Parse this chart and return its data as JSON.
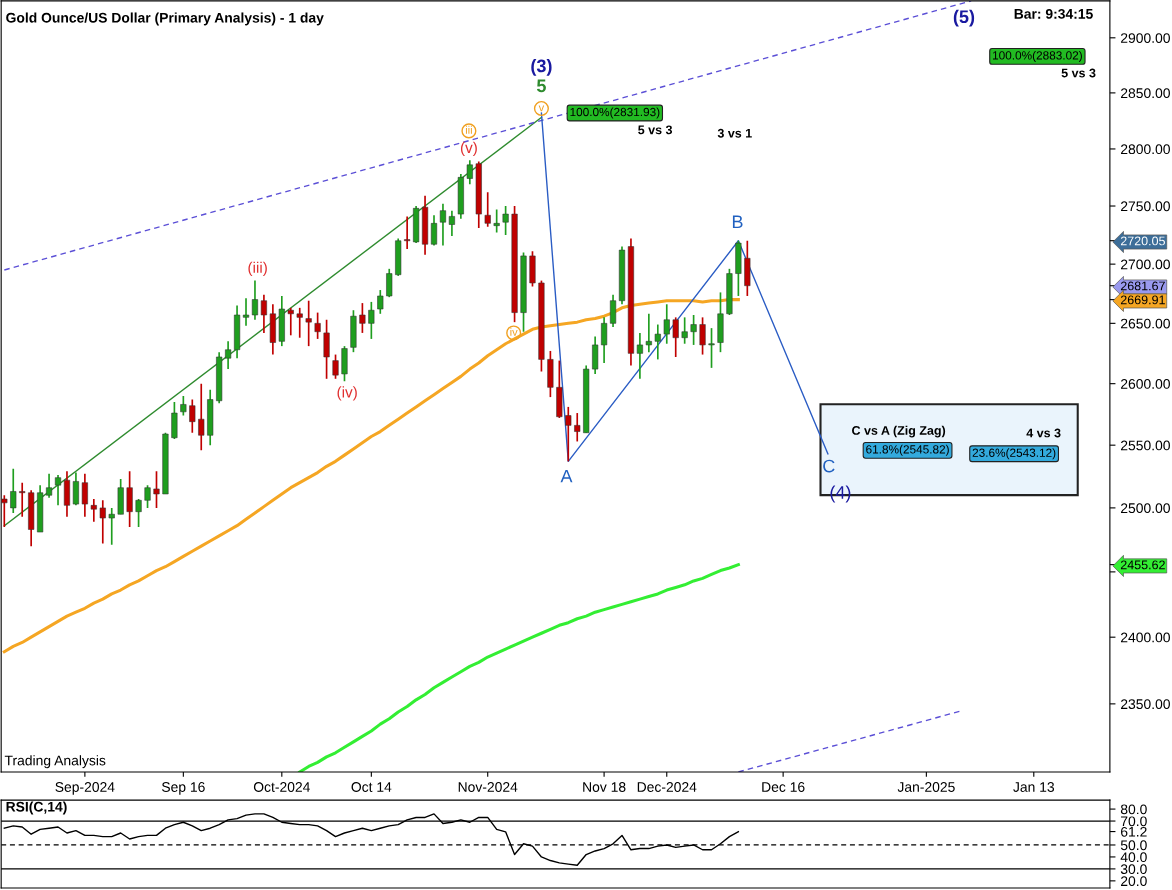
{
  "chart_data": [
    {
      "type": "candlestick",
      "title": "Gold Ounce/US Dollar (Primary Analysis) - 1 day",
      "log": true,
      "categories": [
        null,
        null,
        null,
        null,
        null,
        null,
        null,
        null,
        null,
        "Sep-2024",
        null,
        null,
        null,
        null,
        null,
        null,
        null,
        null,
        null,
        null,
        "Sep 16",
        null,
        null,
        null,
        null,
        null,
        null,
        null,
        null,
        null,
        null,
        "Oct-2024",
        null,
        null,
        null,
        null,
        null,
        null,
        null,
        null,
        null,
        "Oct 14",
        null,
        null,
        null,
        null,
        null,
        null,
        null,
        null,
        null,
        null,
        null,
        null,
        "Nov-2024",
        null,
        null,
        null,
        null,
        null,
        null,
        null,
        null,
        null,
        null,
        null,
        null,
        "Nov 18",
        null,
        null,
        null,
        null,
        null,
        null,
        "Dec-2024",
        null,
        null,
        null,
        null,
        null,
        null,
        null,
        null,
        null,
        null,
        null,
        null,
        "Dec 16",
        null,
        null,
        null,
        null,
        null,
        null,
        null,
        null,
        null,
        null,
        null,
        null,
        null,
        null,
        null,
        "Jan-2025",
        null,
        null,
        null,
        null,
        null,
        null,
        null,
        null,
        null,
        null,
        null,
        "Jan 13",
        null,
        null,
        null,
        null,
        null,
        null,
        null,
        null
      ],
      "ohlc": [
        [
          2507,
          2510,
          2485,
          2504
        ],
        [
          2500,
          2531,
          2496,
          2513
        ],
        [
          2513,
          2520,
          2493,
          2512
        ],
        [
          2512,
          2514,
          2470,
          2483
        ],
        [
          2481,
          2518,
          2481,
          2512
        ],
        [
          2510,
          2527,
          2508,
          2516
        ],
        [
          2518,
          2526,
          2502,
          2524
        ],
        [
          2522,
          2529,
          2493,
          2502
        ],
        [
          2503,
          2528,
          2502,
          2521
        ],
        [
          2520,
          2527,
          2493,
          2503
        ],
        [
          2502,
          2507,
          2489,
          2499
        ],
        [
          2500,
          2506,
          2472,
          2492
        ],
        [
          2492,
          2500,
          2471,
          2495
        ],
        [
          2495,
          2523,
          2495,
          2516
        ],
        [
          2516,
          2529,
          2485,
          2497
        ],
        [
          2497,
          2507,
          2485,
          2506
        ],
        [
          2506,
          2518,
          2500,
          2516
        ],
        [
          2515,
          2529,
          2500,
          2511
        ],
        [
          2511,
          2560,
          2511,
          2559
        ],
        [
          2556,
          2585,
          2555,
          2576
        ],
        [
          2577,
          2590,
          2574,
          2583
        ],
        [
          2582,
          2587,
          2560,
          2569
        ],
        [
          2571,
          2600,
          2546,
          2558
        ],
        [
          2558,
          2595,
          2550,
          2587
        ],
        [
          2586,
          2626,
          2584,
          2622
        ],
        [
          2621,
          2635,
          2612,
          2628
        ],
        [
          2628,
          2665,
          2621,
          2657
        ],
        [
          2655,
          2671,
          2648,
          2657
        ],
        [
          2657,
          2686,
          2653,
          2670
        ],
        [
          2669,
          2674,
          2642,
          2657
        ],
        [
          2658,
          2666,
          2624,
          2634
        ],
        [
          2635,
          2673,
          2631,
          2662
        ],
        [
          2661,
          2663,
          2640,
          2658
        ],
        [
          2658,
          2663,
          2638,
          2655
        ],
        [
          2654,
          2669,
          2631,
          2651
        ],
        [
          2650,
          2659,
          2637,
          2643
        ],
        [
          2642,
          2653,
          2604,
          2622
        ],
        [
          2619,
          2624,
          2604,
          2607
        ],
        [
          2608,
          2631,
          2602,
          2629
        ],
        [
          2630,
          2661,
          2626,
          2656
        ],
        [
          2657,
          2667,
          2642,
          2650
        ],
        [
          2650,
          2668,
          2637,
          2661
        ],
        [
          2662,
          2678,
          2658,
          2673
        ],
        [
          2673,
          2696,
          2672,
          2692
        ],
        [
          2691,
          2722,
          2690,
          2720
        ],
        [
          2721,
          2741,
          2713,
          2720
        ],
        [
          2719,
          2750,
          2718,
          2748
        ],
        [
          2749,
          2759,
          2708,
          2717
        ],
        [
          2717,
          2742,
          2716,
          2735
        ],
        [
          2736,
          2752,
          2716,
          2746
        ],
        [
          2734,
          2746,
          2724,
          2741
        ],
        [
          2743,
          2778,
          2739,
          2775
        ],
        [
          2774,
          2790,
          2769,
          2786
        ],
        [
          2787,
          2789,
          2731,
          2743
        ],
        [
          2742,
          2762,
          2732,
          2735
        ],
        [
          2733,
          2747,
          2727,
          2735
        ],
        [
          2736,
          2750,
          2725,
          2743
        ],
        [
          2743,
          2750,
          2651,
          2659
        ],
        [
          2659,
          2710,
          2643,
          2707
        ],
        [
          2707,
          2711,
          2681,
          2684
        ],
        [
          2684,
          2686,
          2610,
          2620
        ],
        [
          2620,
          2627,
          2589,
          2597
        ],
        [
          2597,
          2619,
          2572,
          2573
        ],
        [
          2574,
          2581,
          2537,
          2566
        ],
        [
          2566,
          2576,
          2553,
          2561
        ],
        [
          2560,
          2615,
          2560,
          2612
        ],
        [
          2612,
          2639,
          2608,
          2632
        ],
        [
          2632,
          2655,
          2617,
          2650
        ],
        [
          2650,
          2674,
          2647,
          2669
        ],
        [
          2669,
          2715,
          2666,
          2712
        ],
        [
          2715,
          2722,
          2615,
          2625
        ],
        [
          2625,
          2642,
          2604,
          2632
        ],
        [
          2632,
          2658,
          2626,
          2635
        ],
        [
          2635,
          2649,
          2620,
          2641
        ],
        [
          2641,
          2666,
          2633,
          2653
        ],
        [
          2653,
          2655,
          2622,
          2638
        ],
        [
          2638,
          2655,
          2633,
          2643
        ],
        [
          2643,
          2657,
          2632,
          2649
        ],
        [
          2649,
          2655,
          2624,
          2632
        ],
        [
          2632,
          2646,
          2613,
          2633
        ],
        [
          2634,
          2676,
          2626,
          2658
        ],
        [
          2658,
          2696,
          2657,
          2692
        ],
        [
          2692,
          2720.05,
          2673,
          2718
        ],
        [
          2705,
          2720,
          2673,
          2681.67
        ],
        null,
        null,
        null,
        null,
        null,
        null,
        null,
        null,
        null,
        null,
        null,
        null,
        null,
        null,
        null,
        null,
        null,
        null,
        null,
        null,
        null,
        null,
        null,
        null,
        null,
        null,
        null,
        null,
        null,
        null,
        null,
        null,
        null,
        null,
        null,
        null,
        null,
        null,
        null,
        null
      ],
      "series": [
        {
          "type": "line",
          "color": "#f5a623",
          "values": [
            2389,
            2393,
            2396,
            2400,
            2404,
            2408,
            2412,
            2416,
            2419,
            2422,
            2426,
            2429,
            2433,
            2436,
            2440,
            2443,
            2447,
            2451,
            2454,
            2458,
            2462,
            2466,
            2470,
            2474,
            2478,
            2482,
            2486,
            2491,
            2496,
            2501,
            2506,
            2511,
            2516,
            2520,
            2524,
            2528,
            2533,
            2537,
            2542,
            2547,
            2552,
            2557,
            2561,
            2566,
            2571,
            2576,
            2581,
            2586,
            2591,
            2596,
            2601,
            2606,
            2612,
            2617,
            2623,
            2628,
            2633,
            2637,
            2641,
            2645,
            2647,
            2648,
            2649,
            2650,
            2651,
            2653,
            2654,
            2656,
            2659,
            2663,
            2665,
            2666,
            2667,
            2668,
            2669,
            2669,
            2669,
            2669,
            2668,
            2669,
            2669,
            2670,
            2669.91,
            null,
            null,
            null,
            null,
            null,
            null,
            null,
            null,
            null,
            null,
            null,
            null,
            null,
            null,
            null,
            null,
            null,
            null,
            null,
            null,
            null,
            null,
            null,
            null,
            null,
            null,
            null,
            null,
            null,
            null,
            null,
            null,
            null,
            null,
            null,
            null,
            null,
            null,
            null,
            null,
            null
          ]
        },
        {
          "type": "line",
          "color": "#33ee33",
          "values": [
            null,
            null,
            null,
            null,
            null,
            null,
            null,
            null,
            null,
            null,
            null,
            null,
            null,
            null,
            null,
            null,
            null,
            null,
            null,
            null,
            null,
            null,
            null,
            null,
            null,
            null,
            null,
            null,
            null,
            null,
            null,
            null,
            null,
            2300,
            2304,
            2307,
            2311,
            2314,
            2318,
            2322,
            2326,
            2330,
            2335,
            2339,
            2344,
            2348,
            2353,
            2357,
            2362,
            2366,
            2370,
            2374,
            2378,
            2381,
            2385,
            2388,
            2391,
            2394,
            2397,
            2400,
            2403,
            2406,
            2409,
            2411,
            2414,
            2416,
            2419,
            2421,
            2423,
            2425,
            2427,
            2429,
            2431,
            2433,
            2436,
            2438,
            2440,
            2443,
            2445,
            2448,
            2451,
            2453,
            2455.62,
            null,
            null,
            null,
            null,
            null,
            null,
            null,
            null,
            null,
            null,
            null,
            null,
            null,
            null,
            null,
            null,
            null,
            null,
            null,
            null,
            null,
            null,
            null,
            null,
            null,
            null,
            null,
            null,
            null,
            null,
            null,
            null,
            null,
            null,
            null,
            null,
            null,
            null,
            null,
            null,
            null
          ]
        },
        {
          "type": "line",
          "color": "#2e8b2e",
          "values": [
            2486,
            null,
            null,
            null,
            null,
            null,
            null,
            null,
            null,
            null,
            null,
            null,
            null,
            null,
            null,
            null,
            null,
            null,
            null,
            null,
            null,
            null,
            null,
            null,
            null,
            null,
            null,
            null,
            null,
            null,
            null,
            null,
            null,
            null,
            null,
            null,
            null,
            null,
            null,
            null,
            null,
            null,
            null,
            null,
            null,
            null,
            null,
            null,
            null,
            null,
            null,
            null,
            null,
            null,
            null,
            null,
            null,
            null,
            null,
            null,
            2828,
            null,
            null,
            null,
            null,
            null,
            null,
            null,
            null,
            null,
            null,
            null,
            null,
            null,
            null,
            null,
            null,
            null,
            null,
            null,
            null,
            null,
            null,
            null,
            null,
            null,
            null,
            null,
            null,
            null,
            null,
            null,
            null,
            null,
            null,
            null,
            null,
            null,
            null,
            null,
            null,
            null,
            null,
            null,
            null,
            null,
            null,
            null,
            null,
            null,
            null,
            null,
            null,
            null,
            null,
            null,
            null,
            null,
            null,
            null,
            null,
            null,
            null,
            null
          ]
        },
        {
          "type": "line",
          "color": "#5b4fd6",
          "line_style": "dashed",
          "values": [
            2695,
            null,
            null,
            null,
            null,
            null,
            null,
            null,
            null,
            null,
            null,
            null,
            null,
            null,
            null,
            null,
            null,
            null,
            null,
            null,
            null,
            null,
            null,
            null,
            null,
            null,
            null,
            null,
            null,
            null,
            null,
            null,
            null,
            null,
            null,
            null,
            null,
            null,
            null,
            null,
            null,
            null,
            null,
            null,
            null,
            null,
            null,
            null,
            null,
            null,
            null,
            null,
            null,
            null,
            null,
            null,
            null,
            null,
            null,
            null,
            null,
            null,
            null,
            null,
            null,
            null,
            null,
            null,
            null,
            null,
            null,
            null,
            null,
            null,
            null,
            null,
            null,
            null,
            null,
            null,
            null,
            null,
            null,
            null,
            null,
            null,
            null,
            null,
            null,
            null,
            null,
            null,
            null,
            null,
            null,
            null,
            null,
            null,
            null,
            null,
            null,
            null,
            null,
            null,
            null,
            null,
            null,
            null,
            2934,
            null,
            null,
            null,
            null,
            null,
            null,
            null,
            null,
            null,
            null,
            null,
            null,
            null,
            null,
            null
          ]
        },
        {
          "type": "line",
          "color": "#5b4fd6",
          "line_style": "dashed",
          "values": [
            null,
            null,
            null,
            null,
            null,
            null,
            null,
            null,
            null,
            null,
            null,
            null,
            null,
            null,
            null,
            null,
            null,
            null,
            null,
            null,
            null,
            null,
            null,
            null,
            null,
            null,
            null,
            null,
            null,
            null,
            null,
            null,
            null,
            null,
            null,
            null,
            null,
            null,
            null,
            null,
            null,
            null,
            null,
            null,
            null,
            null,
            null,
            null,
            null,
            null,
            null,
            null,
            null,
            null,
            null,
            null,
            null,
            null,
            null,
            null,
            null,
            null,
            null,
            null,
            null,
            null,
            null,
            null,
            null,
            null,
            null,
            null,
            null,
            null,
            null,
            null,
            null,
            null,
            null,
            null,
            null,
            null,
            2300,
            null,
            null,
            null,
            null,
            null,
            null,
            null,
            null,
            null,
            null,
            null,
            null,
            null,
            null,
            null,
            null,
            null,
            null,
            null,
            null,
            null,
            null,
            null,
            null,
            2345,
            null,
            null,
            null,
            null,
            null,
            null,
            null,
            null,
            null,
            null,
            null,
            null,
            null,
            null,
            null,
            null
          ]
        },
        {
          "type": "line",
          "color": "#2a5cc4",
          "values": [
            null,
            null,
            null,
            null,
            null,
            null,
            null,
            null,
            null,
            null,
            null,
            null,
            null,
            null,
            null,
            null,
            null,
            null,
            null,
            null,
            null,
            null,
            null,
            null,
            null,
            null,
            null,
            null,
            null,
            null,
            null,
            null,
            null,
            null,
            null,
            null,
            null,
            null,
            null,
            null,
            null,
            null,
            null,
            null,
            null,
            null,
            null,
            null,
            null,
            null,
            null,
            null,
            null,
            null,
            null,
            null,
            null,
            null,
            null,
            null,
            2831.93,
            null,
            null,
            2537,
            null,
            null,
            null,
            null,
            null,
            null,
            null,
            null,
            null,
            null,
            null,
            null,
            null,
            null,
            null,
            null,
            null,
            null,
            2720.05,
            null,
            null,
            null,
            null,
            null,
            null,
            null,
            null,
            null,
            2543,
            null,
            null,
            null,
            null,
            null,
            null,
            null,
            null,
            null,
            null,
            null,
            null,
            null,
            null,
            null,
            null,
            null,
            null,
            null,
            null,
            null,
            null,
            null,
            null,
            null,
            null,
            null,
            null,
            null,
            null,
            null
          ]
        }
      ],
      "ylim": [
        2300,
        2934
      ],
      "yticks": [
        {
          "value": 2350,
          "label": "2350.00"
        },
        {
          "value": 2400,
          "label": "2400.00"
        },
        {
          "value": 2450,
          "label": null
        },
        {
          "value": 2500,
          "label": "2500.00"
        },
        {
          "value": 2550,
          "label": "2550.00"
        },
        {
          "value": 2600,
          "label": "2600.00"
        },
        {
          "value": 2650,
          "label": "2650.00"
        },
        {
          "value": 2700,
          "label": "2700.00"
        },
        {
          "value": 2750,
          "label": "2750.00"
        },
        {
          "value": 2800,
          "label": "2800.00"
        },
        {
          "value": 2850,
          "label": "2850.00"
        },
        {
          "value": 2900,
          "label": "2900.00"
        },
        {
          "value": 2720.05,
          "label": "2720.05"
        },
        {
          "value": 2681.67,
          "label": "2681.67"
        },
        {
          "value": 2669.91,
          "label": "2669.91"
        },
        {
          "value": 2455.62,
          "label": "2455.62"
        }
      ],
      "annotations": [
        "(iii)",
        "(iv)",
        "(v)",
        "iii",
        "iv",
        "v",
        "5",
        "(3)",
        "A",
        "B",
        "C",
        "(4)",
        "(5)",
        "100.0%(2831.93)",
        "5 vs 3",
        "3 vs 1",
        "100.0%(2883.02)",
        "5 vs 3",
        "C vs A (Zig Zag)",
        "61.8%(2545.82)",
        "4 vs 3",
        "23.6%(2543.12)",
        "Bar: 9:34:15",
        "Trading Analysis"
      ]
    },
    {
      "type": "line",
      "title": "RSI(C,14)",
      "color": "#000000",
      "categories": [
        null,
        null,
        null,
        null,
        null,
        null,
        null,
        null,
        null,
        null,
        null,
        null,
        null,
        null,
        null,
        null,
        null,
        null,
        null,
        null,
        null,
        null,
        null,
        null,
        null,
        null,
        null,
        null,
        null,
        null,
        null,
        null,
        null,
        null,
        null,
        null,
        null,
        null,
        null,
        null,
        null,
        null,
        null,
        null,
        null,
        null,
        null,
        null,
        null,
        null,
        null,
        null,
        null,
        null,
        null,
        null,
        null,
        null,
        null,
        null,
        null,
        null,
        null,
        null,
        null,
        null,
        null,
        null,
        null,
        null,
        null,
        null,
        null,
        null,
        null,
        null,
        null,
        null,
        null,
        null,
        null,
        null,
        null,
        null,
        null,
        null,
        null,
        null,
        null,
        null,
        null,
        null,
        null,
        null,
        null,
        null,
        null,
        null,
        null,
        null,
        null,
        null,
        null,
        null,
        null,
        null,
        null,
        null,
        null,
        null,
        null,
        null,
        null,
        null,
        null,
        null,
        null,
        null,
        null,
        null,
        null,
        null,
        null,
        null
      ],
      "values": [
        64,
        66,
        65,
        59,
        63,
        64,
        65,
        60,
        62,
        58,
        58,
        57,
        57,
        60,
        55,
        57,
        58,
        58,
        64,
        67,
        69,
        66,
        62,
        64,
        67,
        71,
        72,
        75,
        76,
        76,
        73,
        69,
        68,
        67,
        67,
        66,
        62,
        57,
        60,
        62,
        64,
        62,
        64,
        66,
        67,
        71,
        73,
        73,
        76,
        68,
        69,
        71,
        69,
        73,
        73,
        63,
        61,
        42,
        51,
        49,
        40,
        37,
        35,
        34,
        33,
        42,
        45,
        47,
        51,
        58,
        46,
        47,
        47,
        49,
        50,
        48,
        49,
        50,
        46,
        46,
        51,
        57,
        61,
        null,
        null,
        null,
        null,
        null,
        null,
        null,
        null,
        null,
        null,
        null,
        null,
        null,
        null,
        null,
        null,
        null,
        null,
        null,
        null,
        null,
        null,
        null,
        null,
        null,
        null,
        null,
        null,
        null,
        null,
        null,
        null,
        null,
        null,
        null,
        null,
        null,
        null,
        null,
        null,
        null
      ],
      "ylim": [
        14,
        87.5
      ],
      "tick_labels": "y",
      "yticks": [
        {
          "value": 80,
          "label": "80.0"
        },
        {
          "value": 70,
          "label": "70.0"
        },
        {
          "value": 61.2,
          "label": "61.2"
        },
        {
          "value": 50,
          "label": "50.0"
        },
        {
          "value": 40,
          "label": "40.0"
        },
        {
          "value": 30,
          "label": "30.0"
        },
        {
          "value": 20,
          "label": "20.0"
        }
      ],
      "ref_lines": [
        {
          "axis": "y",
          "value": 70,
          "color": "#000000"
        },
        {
          "axis": "y",
          "value": 50,
          "color": "#000000",
          "line_style": "dashed"
        },
        {
          "axis": "y",
          "value": 30,
          "color": "#000000"
        }
      ]
    }
  ]
}
